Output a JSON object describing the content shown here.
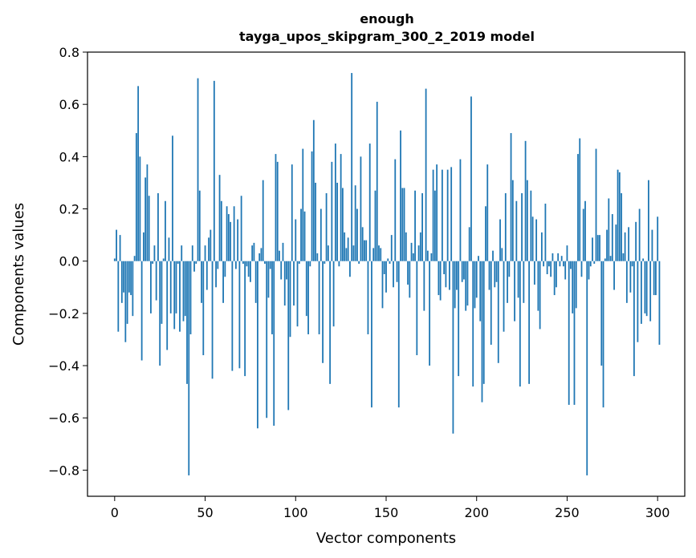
{
  "chart_data": {
    "type": "bar",
    "title": [
      "enough",
      "tayga_upos_skipgram_300_2_2019 model"
    ],
    "xlabel": "Vector components",
    "ylabel": "Components values",
    "xlim": [
      -15,
      315
    ],
    "ylim": [
      -0.9,
      0.8
    ],
    "xticks": [
      0,
      50,
      100,
      150,
      200,
      250,
      300
    ],
    "yticks": [
      -0.8,
      -0.6,
      -0.4,
      -0.2,
      0.0,
      0.2,
      0.4,
      0.6,
      0.8
    ],
    "xtick_labels": [
      "0",
      "50",
      "100",
      "150",
      "200",
      "250",
      "300"
    ],
    "ytick_labels": [
      "−0.8",
      "−0.6",
      "−0.4",
      "−0.2",
      "0.0",
      "0.2",
      "0.4",
      "0.6",
      "0.8"
    ],
    "grid": false,
    "bar_color": "#1f77b4",
    "values": [
      0.01,
      0.12,
      -0.27,
      0.1,
      -0.16,
      -0.12,
      -0.31,
      -0.24,
      -0.12,
      -0.13,
      -0.21,
      0.02,
      0.49,
      0.67,
      0.4,
      -0.38,
      0.11,
      0.32,
      0.37,
      0.25,
      -0.2,
      -0.01,
      0.06,
      -0.15,
      0.26,
      -0.4,
      -0.24,
      0.01,
      0.23,
      -0.34,
      0.09,
      -0.2,
      0.48,
      -0.26,
      -0.2,
      -0.01,
      -0.27,
      0.06,
      -0.23,
      -0.21,
      -0.47,
      -0.82,
      -0.28,
      0.06,
      -0.04,
      -0.01,
      0.7,
      0.27,
      -0.16,
      -0.36,
      0.06,
      -0.11,
      0.09,
      0.12,
      -0.45,
      0.69,
      -0.1,
      -0.03,
      0.33,
      0.23,
      -0.16,
      -0.06,
      0.21,
      0.18,
      0.15,
      -0.42,
      0.21,
      -0.03,
      0.16,
      -0.41,
      0.25,
      -0.01,
      -0.44,
      -0.02,
      -0.06,
      -0.08,
      0.06,
      0.07,
      -0.16,
      -0.64,
      0.03,
      0.05,
      0.31,
      -0.01,
      -0.6,
      -0.14,
      -0.03,
      -0.28,
      -0.63,
      0.41,
      0.38,
      0.04,
      -0.07,
      0.07,
      -0.17,
      -0.07,
      -0.57,
      -0.29,
      0.37,
      -0.17,
      0.16,
      -0.25,
      -0.01,
      0.2,
      0.43,
      0.19,
      -0.21,
      -0.28,
      -0.02,
      0.42,
      0.54,
      0.3,
      0.03,
      -0.28,
      0.2,
      -0.39,
      -0.01,
      0.26,
      0.06,
      -0.47,
      0.38,
      -0.25,
      0.45,
      0.3,
      -0.02,
      0.41,
      0.28,
      0.11,
      0.05,
      0.09,
      -0.06,
      0.72,
      0.06,
      0.29,
      0.2,
      -0.01,
      0.4,
      0.13,
      0.08,
      0.08,
      -0.28,
      0.45,
      -0.56,
      0.05,
      0.27,
      0.61,
      0.06,
      0.05,
      -0.18,
      -0.05,
      -0.12,
      0.01,
      -0.01,
      0.1,
      -0.1,
      0.39,
      -0.08,
      -0.56,
      0.5,
      0.28,
      0.28,
      0.11,
      -0.09,
      -0.14,
      0.07,
      0.03,
      0.27,
      -0.36,
      0.06,
      0.11,
      0.26,
      -0.19,
      0.66,
      0.04,
      -0.4,
      0.03,
      0.35,
      0.27,
      0.37,
      -0.13,
      -0.15,
      0.35,
      -0.05,
      -0.1,
      0.35,
      -0.11,
      0.36,
      -0.66,
      -0.18,
      -0.11,
      -0.44,
      0.39,
      -0.08,
      -0.07,
      -0.19,
      -0.17,
      0.13,
      0.63,
      -0.48,
      -0.18,
      -0.14,
      0.02,
      -0.23,
      -0.54,
      -0.47,
      0.21,
      0.37,
      -0.11,
      -0.32,
      0.04,
      -0.1,
      -0.08,
      -0.39,
      0.16,
      0.05,
      -0.27,
      0.26,
      -0.16,
      -0.06,
      0.49,
      0.31,
      -0.23,
      0.23,
      -0.14,
      -0.48,
      0.26,
      -0.16,
      0.46,
      0.31,
      -0.47,
      0.27,
      0.17,
      -0.09,
      0.16,
      -0.19,
      -0.26,
      0.11,
      -0.02,
      0.22,
      -0.05,
      -0.02,
      -0.06,
      0.03,
      -0.13,
      -0.1,
      0.03,
      -0.02,
      0.02,
      -0.02,
      -0.07,
      0.06,
      -0.55,
      -0.03,
      -0.2,
      -0.55,
      -0.18,
      0.41,
      0.47,
      -0.06,
      0.2,
      0.23,
      -0.82,
      -0.07,
      -0.02,
      0.09,
      -0.01,
      0.43,
      0.1,
      0.1,
      -0.4,
      -0.56,
      0.01,
      0.12,
      0.24,
      0.02,
      0.18,
      -0.11,
      0.14,
      0.35,
      0.34,
      0.26,
      0.03,
      0.11,
      -0.16,
      0.13,
      -0.12,
      -0.02,
      -0.44,
      0.15,
      -0.31,
      0.2,
      -0.24,
      0.01,
      -0.2,
      -0.21,
      0.31,
      -0.23,
      0.12,
      -0.13,
      -0.13,
      0.17,
      -0.32
    ]
  }
}
